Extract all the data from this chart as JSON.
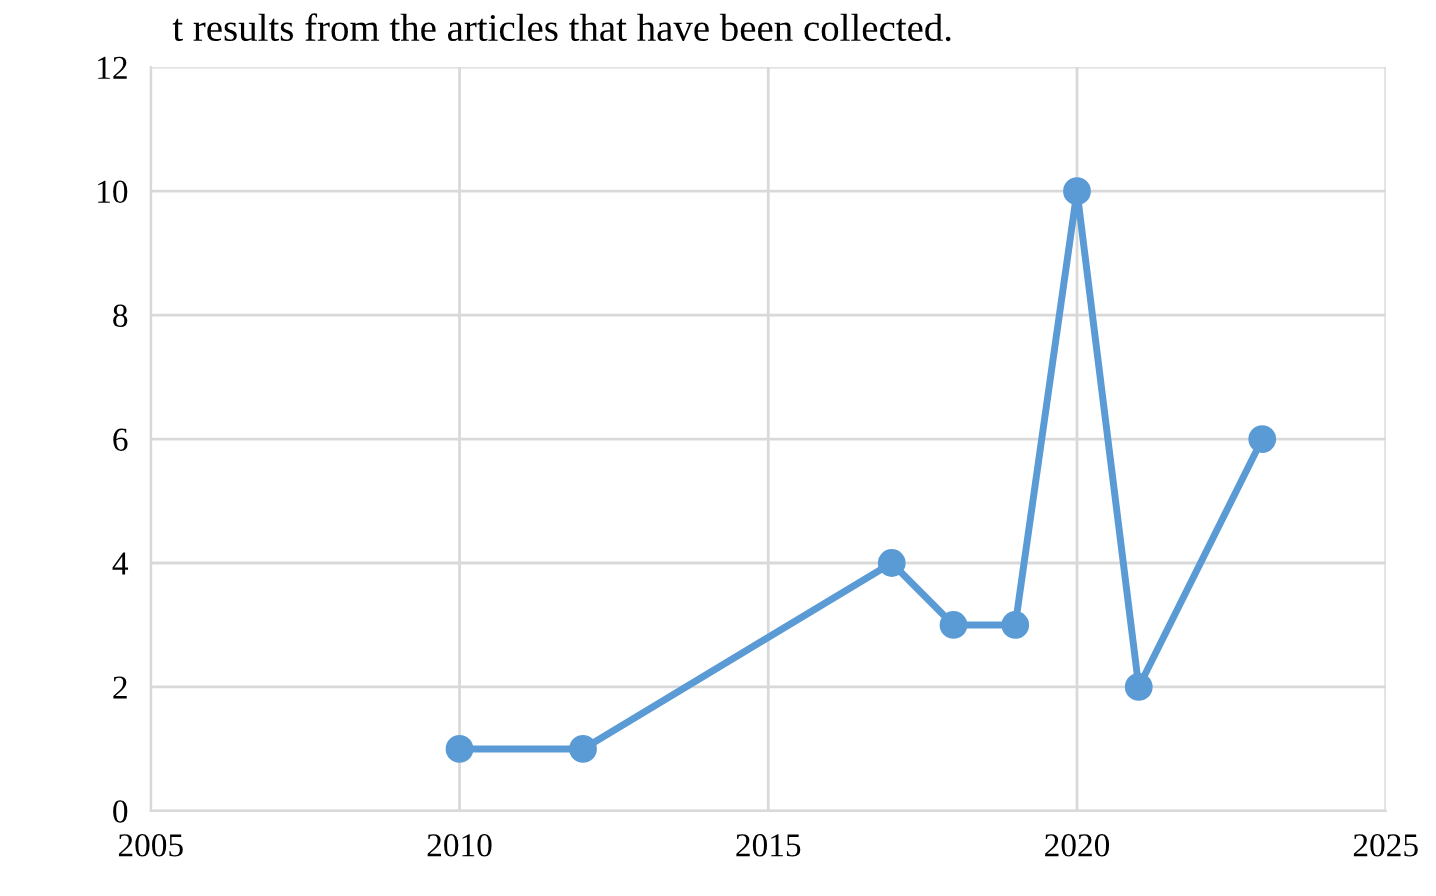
{
  "chart_data": {
    "type": "line",
    "annotations": [
      "t results from the articles that have been collected."
    ],
    "x": [
      2010,
      2012,
      2017,
      2018,
      2019,
      2020,
      2021,
      2023
    ],
    "series": [
      {
        "color": "#5b9bd5",
        "values": [
          1,
          1,
          4,
          3,
          3,
          10,
          2,
          6
        ]
      }
    ],
    "xlim": [
      2005,
      2025
    ],
    "xticks": [
      2005,
      2010,
      2015,
      2020,
      2025
    ],
    "ylim": [
      0,
      12
    ],
    "yticks": [
      0,
      2,
      4,
      6,
      8,
      10,
      12
    ],
    "grid": true,
    "marker": "circle",
    "line_style": "solid",
    "legend": false
  }
}
